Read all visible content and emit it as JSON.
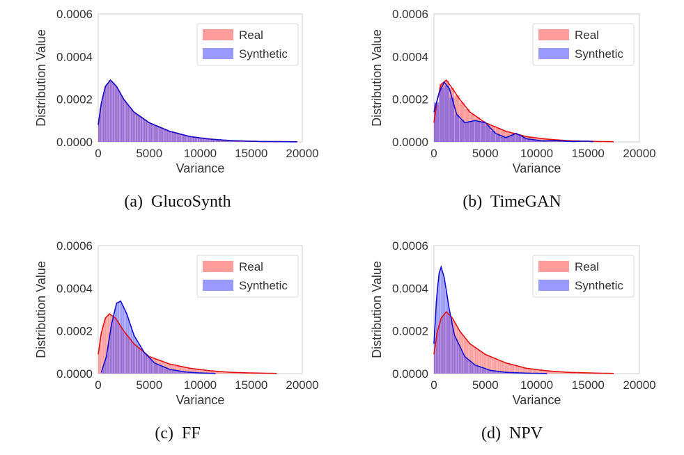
{
  "figure": {
    "colors": {
      "real": "#ff5a5a",
      "synthetic": "#5555ff",
      "real_line": "#e01010",
      "synthetic_line": "#1010d0",
      "overlap": "#8a4cc8"
    }
  },
  "chart_data": [
    {
      "type": "histogram",
      "caption": "(a)  GlucoSynth",
      "xlabel": "Variance",
      "ylabel": "Distribution Value",
      "xlim": [
        0,
        20000
      ],
      "ylim": [
        0,
        0.0006
      ],
      "xticks": [
        "0",
        "5000",
        "10000",
        "15000",
        "20000"
      ],
      "yticks": [
        "0.0000",
        "0.0002",
        "0.0004",
        "0.0006"
      ],
      "grid": false,
      "legend": {
        "position": "top-right",
        "entries": [
          "Real",
          "Synthetic"
        ]
      },
      "series": [
        {
          "name": "Real",
          "kde": [
            [
              0,
              8e-05
            ],
            [
              300,
              0.00018
            ],
            [
              700,
              0.00026
            ],
            [
              1200,
              0.00029
            ],
            [
              1800,
              0.00026
            ],
            [
              2500,
              0.0002
            ],
            [
              3500,
              0.00014
            ],
            [
              5000,
              9e-05
            ],
            [
              7000,
              5e-05
            ],
            [
              9000,
              2.5e-05
            ],
            [
              11000,
              1.3e-05
            ],
            [
              13000,
              6e-06
            ],
            [
              16000,
              2e-06
            ],
            [
              19500,
              5e-07
            ]
          ]
        },
        {
          "name": "Synthetic",
          "kde": [
            [
              0,
              8e-05
            ],
            [
              300,
              0.00018
            ],
            [
              700,
              0.00026
            ],
            [
              1200,
              0.00029
            ],
            [
              1800,
              0.00026
            ],
            [
              2500,
              0.0002
            ],
            [
              3500,
              0.00014
            ],
            [
              5000,
              9e-05
            ],
            [
              7000,
              5e-05
            ],
            [
              9000,
              2.5e-05
            ],
            [
              11000,
              1.3e-05
            ],
            [
              13000,
              6e-06
            ],
            [
              16000,
              2e-06
            ],
            [
              19500,
              5e-07
            ]
          ]
        }
      ]
    },
    {
      "type": "histogram",
      "caption": "(b)  TimeGAN",
      "xlabel": "Variance",
      "ylabel": "Distribution Value",
      "xlim": [
        0,
        20000
      ],
      "ylim": [
        0,
        0.0006
      ],
      "xticks": [
        "0",
        "5000",
        "10000",
        "15000",
        "20000"
      ],
      "yticks": [
        "0.0000",
        "0.0002",
        "0.0004",
        "0.0006"
      ],
      "grid": false,
      "legend": {
        "position": "top-right",
        "entries": [
          "Real",
          "Synthetic"
        ]
      },
      "series": [
        {
          "name": "Real",
          "kde": [
            [
              0,
              9e-05
            ],
            [
              300,
              0.00019
            ],
            [
              700,
              0.00027
            ],
            [
              1200,
              0.00029
            ],
            [
              1800,
              0.00025
            ],
            [
              2500,
              0.0002
            ],
            [
              3500,
              0.00014
            ],
            [
              5000,
              9e-05
            ],
            [
              7000,
              5e-05
            ],
            [
              9000,
              2.5e-05
            ],
            [
              11000,
              1.3e-05
            ],
            [
              13000,
              6e-06
            ],
            [
              16000,
              2e-06
            ],
            [
              17500,
              8e-07
            ]
          ]
        },
        {
          "name": "Synthetic",
          "kde": [
            [
              0,
              0.00014
            ],
            [
              500,
              0.00023
            ],
            [
              1000,
              0.00028
            ],
            [
              1500,
              0.00025
            ],
            [
              2200,
              0.00013
            ],
            [
              3000,
              9e-05
            ],
            [
              4000,
              0.0001
            ],
            [
              5000,
              9e-05
            ],
            [
              6000,
              4e-05
            ],
            [
              7000,
              2e-05
            ],
            [
              8000,
              4e-05
            ],
            [
              9000,
              1.5e-05
            ],
            [
              10500,
              5e-06
            ],
            [
              12000,
              6e-06
            ],
            [
              13500,
              2e-06
            ],
            [
              15000,
              4e-06
            ],
            [
              15500,
              5e-07
            ]
          ]
        }
      ]
    },
    {
      "type": "histogram",
      "caption": "(c)  FF",
      "xlabel": "Variance",
      "ylabel": "Distribution Value",
      "xlim": [
        0,
        20000
      ],
      "ylim": [
        0,
        0.0006
      ],
      "xticks": [
        "0",
        "5000",
        "10000",
        "15000",
        "20000"
      ],
      "yticks": [
        "0.0000",
        "0.0002",
        "0.0004",
        "0.0006"
      ],
      "grid": false,
      "legend": {
        "position": "top-right",
        "entries": [
          "Real",
          "Synthetic"
        ]
      },
      "series": [
        {
          "name": "Real",
          "kde": [
            [
              0,
              9e-05
            ],
            [
              300,
              0.00019
            ],
            [
              700,
              0.00026
            ],
            [
              1100,
              0.00028
            ],
            [
              1700,
              0.00026
            ],
            [
              2500,
              0.0002
            ],
            [
              3500,
              0.00014
            ],
            [
              5000,
              8e-05
            ],
            [
              7000,
              4.5e-05
            ],
            [
              9000,
              2.5e-05
            ],
            [
              11000,
              1.3e-05
            ],
            [
              13000,
              6e-06
            ],
            [
              15000,
              3e-06
            ],
            [
              17500,
              8e-07
            ]
          ]
        },
        {
          "name": "Synthetic",
          "kde": [
            [
              300,
              5e-06
            ],
            [
              800,
              8e-05
            ],
            [
              1300,
              0.00023
            ],
            [
              1800,
              0.00033
            ],
            [
              2200,
              0.00034
            ],
            [
              2800,
              0.00028
            ],
            [
              3500,
              0.00018
            ],
            [
              4500,
              0.0001
            ],
            [
              5500,
              5e-05
            ],
            [
              7000,
              2e-05
            ],
            [
              8500,
              8e-06
            ],
            [
              10000,
              3e-06
            ],
            [
              11500,
              8e-07
            ]
          ]
        }
      ]
    },
    {
      "type": "histogram",
      "caption": "(d)  NPV",
      "xlabel": "Variance",
      "ylabel": "Distribution Value",
      "xlim": [
        0,
        20000
      ],
      "ylim": [
        0,
        0.0006
      ],
      "xticks": [
        "0",
        "5000",
        "10000",
        "15000",
        "20000"
      ],
      "yticks": [
        "0.0000",
        "0.0002",
        "0.0004",
        "0.0006"
      ],
      "grid": false,
      "legend": {
        "position": "top-right",
        "entries": [
          "Real",
          "Synthetic"
        ]
      },
      "series": [
        {
          "name": "Real",
          "kde": [
            [
              0,
              9e-05
            ],
            [
              300,
              0.00019
            ],
            [
              700,
              0.00026
            ],
            [
              1200,
              0.00029
            ],
            [
              1800,
              0.00026
            ],
            [
              2500,
              0.0002
            ],
            [
              3500,
              0.00014
            ],
            [
              5000,
              9e-05
            ],
            [
              7000,
              5e-05
            ],
            [
              9000,
              2.5e-05
            ],
            [
              11000,
              1.3e-05
            ],
            [
              13000,
              6e-06
            ],
            [
              16000,
              2e-06
            ],
            [
              17500,
              8e-07
            ]
          ]
        },
        {
          "name": "Synthetic",
          "kde": [
            [
              0,
              0.00014
            ],
            [
              250,
              0.00035
            ],
            [
              500,
              0.00047
            ],
            [
              700,
              0.0005
            ],
            [
              1000,
              0.00045
            ],
            [
              1500,
              0.0003
            ],
            [
              2000,
              0.00018
            ],
            [
              3000,
              8e-05
            ],
            [
              4000,
              4e-05
            ],
            [
              5500,
              1.5e-05
            ],
            [
              7000,
              6e-06
            ],
            [
              9000,
              2e-06
            ],
            [
              11000,
              5e-07
            ]
          ]
        }
      ]
    }
  ]
}
